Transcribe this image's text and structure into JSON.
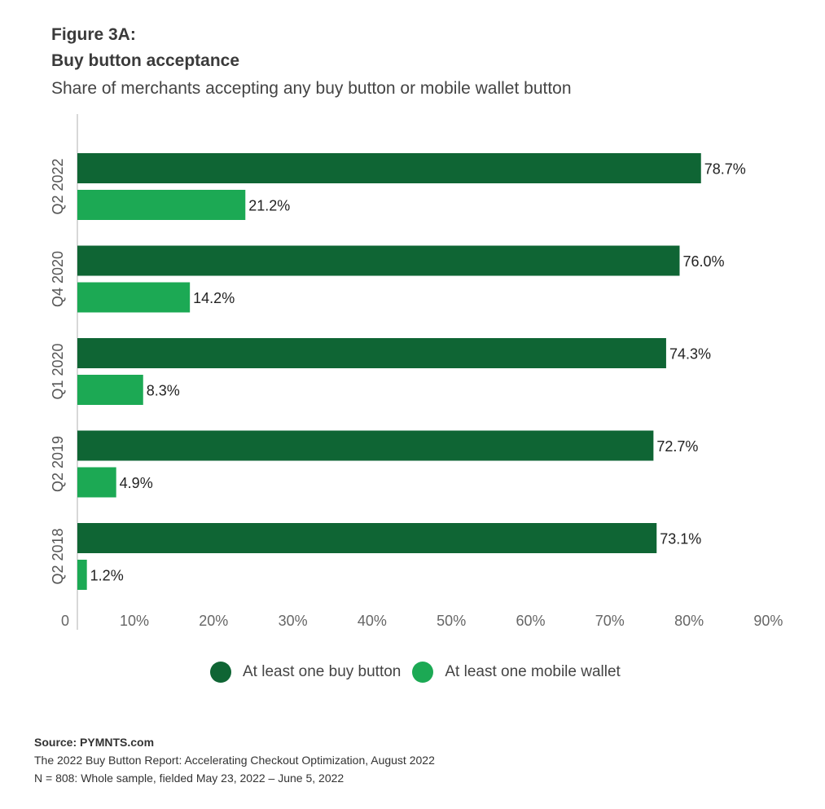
{
  "figure_label": "Figure 3A:",
  "title": "Buy button acceptance",
  "subtitle": "Share of merchants accepting any buy button or mobile wallet button",
  "colors": {
    "buy_button": "#0f6534",
    "mobile_wallet": "#1ca954",
    "axis": "#cccccc",
    "text": "#333333"
  },
  "chart_data": {
    "type": "bar",
    "orientation": "horizontal",
    "title": "Buy button acceptance",
    "subtitle": "Share of merchants accepting any buy button or mobile wallet button",
    "categories": [
      "Q2 2022",
      "Q4 2020",
      "Q1 2020",
      "Q2 2019",
      "Q2 2018"
    ],
    "series": [
      {
        "name": "At least one buy button",
        "color": "#0f6534",
        "values": [
          78.7,
          76.0,
          74.3,
          72.7,
          73.1
        ],
        "labels": [
          "78.7%",
          "76.0%",
          "74.3%",
          "72.7%",
          "73.1%"
        ]
      },
      {
        "name": "At least one mobile wallet",
        "color": "#1ca954",
        "values": [
          21.2,
          14.2,
          8.3,
          4.9,
          1.2
        ],
        "labels": [
          "21.2%",
          "14.2%",
          "8.3%",
          "4.9%",
          "1.2%"
        ]
      }
    ],
    "x_ticks": [
      "0",
      "10%",
      "20%",
      "30%",
      "40%",
      "50%",
      "60%",
      "70%",
      "80%",
      "90%"
    ],
    "xlim": [
      0,
      90
    ],
    "xlabel": "",
    "ylabel": "",
    "grid": false,
    "legend_position": "bottom"
  },
  "legend": [
    {
      "label": "At least one buy button"
    },
    {
      "label": "At least one mobile wallet"
    }
  ],
  "source": {
    "label": "Source: PYMNTS.com",
    "line1": "The 2022 Buy Button Report: Accelerating Checkout Optimization, August 2022",
    "line2": "N = 808: Whole sample, fielded May 23, 2022 – June 5, 2022"
  }
}
